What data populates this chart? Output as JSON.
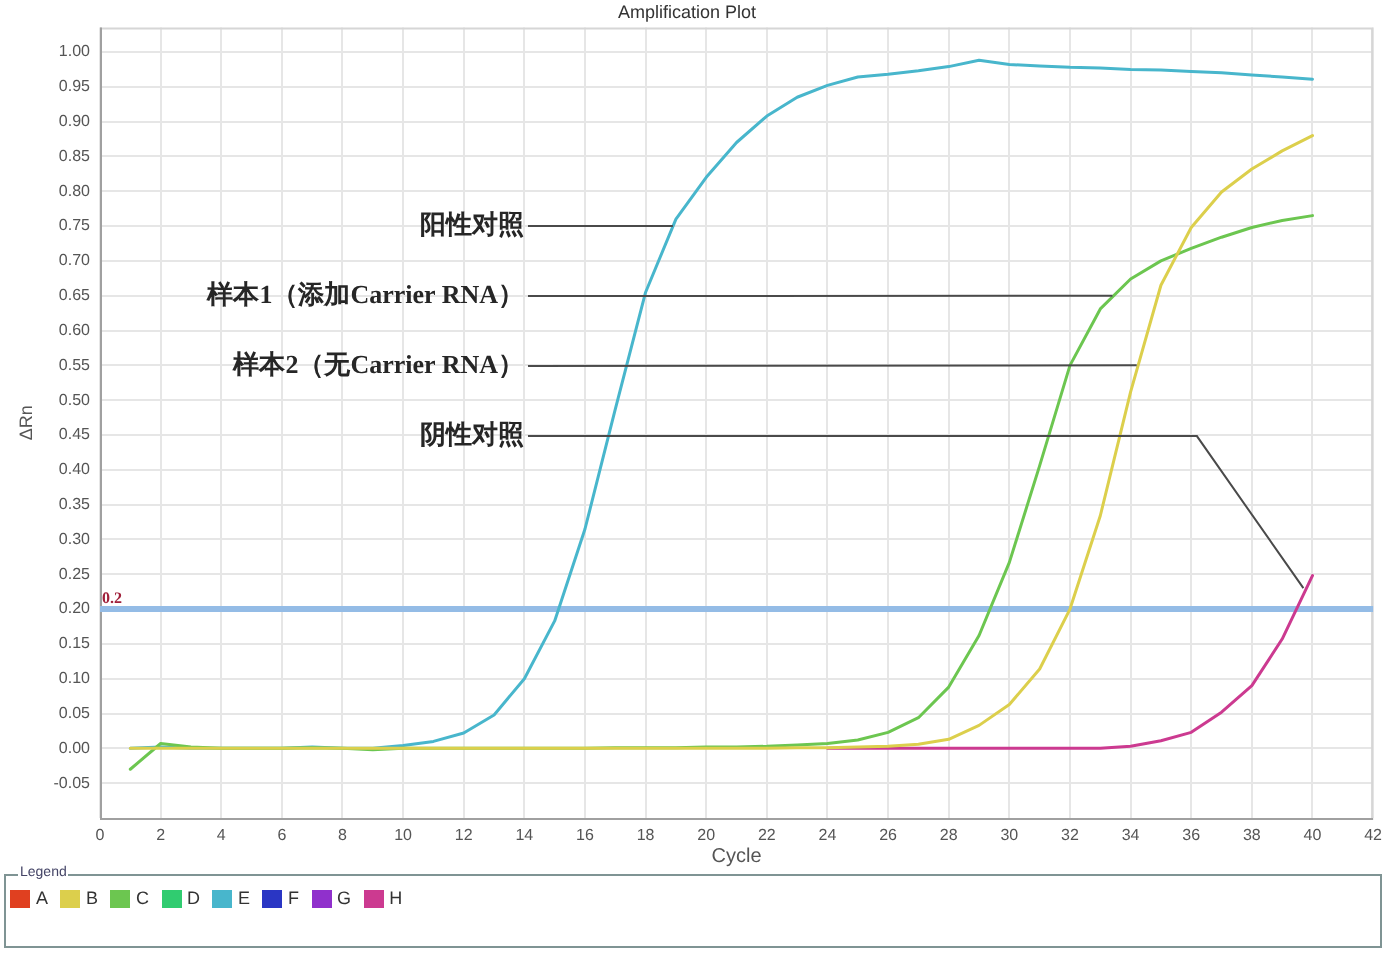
{
  "chart_data": {
    "type": "line",
    "title": "Amplification Plot",
    "xlabel": "Cycle",
    "ylabel": "ΔRn",
    "legend_title": "Legend",
    "x": [
      1,
      2,
      3,
      4,
      5,
      6,
      7,
      8,
      9,
      10,
      11,
      12,
      13,
      14,
      15,
      16,
      17,
      18,
      19,
      20,
      21,
      22,
      23,
      24,
      25,
      26,
      27,
      28,
      29,
      30,
      31,
      32,
      33,
      34,
      35,
      36,
      37,
      38,
      39,
      40
    ],
    "series": [
      {
        "name": "A",
        "color": "#e04020",
        "values": [
          null,
          null,
          null,
          null,
          null,
          null,
          null,
          null,
          null,
          null,
          null,
          null,
          null,
          null,
          null,
          null,
          null,
          null,
          null,
          null,
          null,
          null,
          null,
          null,
          null,
          null,
          null,
          null,
          null,
          null,
          null,
          null,
          null,
          null,
          null,
          null,
          null,
          null,
          null,
          null
        ]
      },
      {
        "name": "B",
        "color": "#dccf4c",
        "values": [
          0,
          0,
          0,
          0,
          0,
          0,
          0,
          0,
          0,
          0,
          0,
          0,
          0,
          0,
          0,
          0,
          0,
          0,
          0,
          0,
          0,
          0,
          0.001,
          0.001,
          0.002,
          0.003,
          0.006,
          0.013,
          0.033,
          0.063,
          0.114,
          0.2,
          0.334,
          0.512,
          0.665,
          0.748,
          0.799,
          0.832,
          0.858,
          0.88
        ]
      },
      {
        "name": "C",
        "color": "#6cc650",
        "values": [
          -0.03,
          0.007,
          0.002,
          0,
          0,
          0,
          0.001,
          0,
          -0.002,
          0,
          0,
          0,
          0,
          0,
          0,
          0,
          0.001,
          0.001,
          0.001,
          0.002,
          0.002,
          0.003,
          0.005,
          0.007,
          0.012,
          0.023,
          0.044,
          0.088,
          0.162,
          0.267,
          0.406,
          0.55,
          0.631,
          0.674,
          0.7,
          0.718,
          0.734,
          0.748,
          0.758,
          0.765
        ]
      },
      {
        "name": "D",
        "color": "#30cc70",
        "values": [
          null,
          null,
          null,
          null,
          null,
          null,
          null,
          null,
          null,
          null,
          null,
          null,
          null,
          null,
          null,
          null,
          null,
          null,
          null,
          null,
          null,
          null,
          null,
          null,
          null,
          null,
          null,
          null,
          null,
          null,
          null,
          null,
          null,
          null,
          null,
          null,
          null,
          null,
          null,
          null
        ]
      },
      {
        "name": "E",
        "color": "#48b6cc",
        "values": [
          0,
          0.002,
          0,
          0,
          0,
          0,
          0.002,
          0,
          0,
          0.004,
          0.01,
          0.022,
          0.048,
          0.1,
          0.183,
          0.315,
          0.487,
          0.655,
          0.76,
          0.82,
          0.87,
          0.908,
          0.935,
          0.952,
          0.964,
          0.968,
          0.973,
          0.979,
          0.988,
          0.982,
          0.98,
          0.978,
          0.977,
          0.975,
          0.974,
          0.972,
          0.97,
          0.967,
          0.964,
          0.961
        ]
      },
      {
        "name": "F",
        "color": "#2a36c4",
        "values": [
          null,
          null,
          null,
          null,
          null,
          null,
          null,
          null,
          null,
          null,
          null,
          null,
          null,
          null,
          null,
          null,
          null,
          null,
          null,
          null,
          null,
          null,
          null,
          null,
          null,
          null,
          null,
          null,
          null,
          null,
          null,
          null,
          null,
          null,
          null,
          null,
          null,
          null,
          null,
          null
        ]
      },
      {
        "name": "G",
        "color": "#9030cc",
        "values": [
          null,
          null,
          null,
          null,
          null,
          null,
          null,
          null,
          null,
          null,
          null,
          null,
          null,
          null,
          null,
          null,
          null,
          null,
          null,
          null,
          null,
          null,
          null,
          null,
          null,
          null,
          null,
          null,
          null,
          null,
          null,
          null,
          null,
          null,
          null,
          null,
          null,
          null,
          null,
          null
        ]
      },
      {
        "name": "H",
        "color": "#cc3a90",
        "values": [
          null,
          null,
          null,
          null,
          null,
          null,
          null,
          null,
          null,
          null,
          null,
          null,
          null,
          null,
          null,
          null,
          null,
          null,
          null,
          null,
          null,
          null,
          null,
          0,
          0,
          0,
          0,
          0,
          0,
          0,
          0,
          0,
          0,
          0.003,
          0.011,
          0.023,
          0.052,
          0.09,
          0.157,
          0.248
        ]
      }
    ],
    "xlim": [
      0,
      42
    ],
    "xticks": [
      0,
      2,
      4,
      6,
      8,
      10,
      12,
      14,
      16,
      18,
      20,
      22,
      24,
      26,
      28,
      30,
      32,
      34,
      36,
      38,
      40,
      42
    ],
    "ylim": [
      -0.1,
      1.035
    ],
    "yticks": [
      -0.05,
      {
        "value": 0,
        "label": "0.00"
      },
      0.05,
      {
        "value": 0.1,
        "label": "0.10"
      },
      0.15,
      {
        "value": 0.2,
        "label": "0.20"
      },
      0.25,
      {
        "value": 0.3,
        "label": "0.30"
      },
      0.35,
      {
        "value": 0.4,
        "label": "0.40"
      },
      0.45,
      {
        "value": 0.5,
        "label": "0.50"
      },
      0.55,
      {
        "value": 0.6,
        "label": "0.60"
      },
      0.65,
      {
        "value": 0.7,
        "label": "0.70"
      },
      0.75,
      {
        "value": 0.8,
        "label": "0.80"
      },
      0.85,
      {
        "value": 0.9,
        "label": "0.90"
      },
      0.95,
      {
        "value": 1,
        "label": "1.00"
      }
    ],
    "ref_lines": [
      {
        "axis": "y",
        "value": 0.2,
        "label": "0.2",
        "color": "#94bce6"
      }
    ],
    "annotations": [
      {
        "text": "阳性对照",
        "x": 18.9,
        "y": 0.75
      },
      {
        "text": "样本1（添加Carrier RNA）",
        "x": 33.4,
        "y": 0.65
      },
      {
        "text": "样本2（无Carrier RNA）",
        "x": 34.2,
        "y": 0.55
      },
      {
        "text": "阴性对照",
        "x": 39.7,
        "y": 0.23
      }
    ],
    "grid": true,
    "legend": "bottom",
    "marker": "none"
  }
}
